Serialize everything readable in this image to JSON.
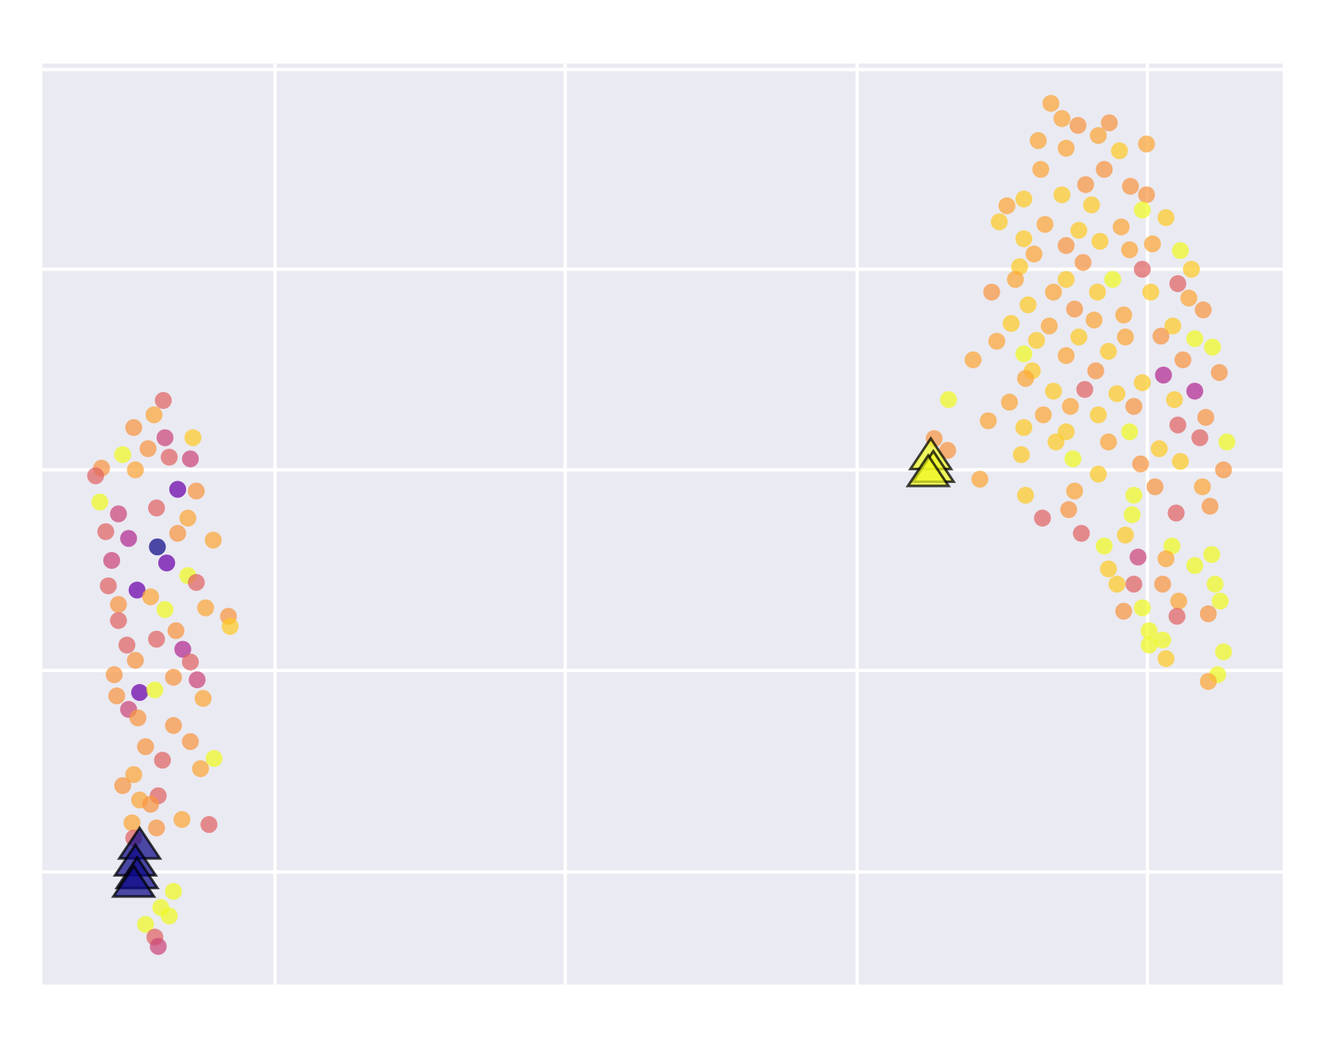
{
  "chart_data": {
    "type": "scatter",
    "grid": true,
    "background": "#eaeaf2",
    "grid_color": "#ffffff",
    "alpha": 0.72,
    "xlim": [
      50,
      1516
    ],
    "ylim": [
      0,
      1088
    ],
    "xticks": [
      325,
      668,
      1013,
      1356
    ],
    "yticks": [
      133,
      371,
      608,
      845,
      1081
    ],
    "series": [
      {
        "marker": "circle",
        "x": [
          193,
          182,
          158,
          195,
          228,
          145,
          175,
          200,
          225,
          120,
          113,
          160,
          210,
          232,
          118,
          140,
          185,
          222,
          125,
          152,
          186,
          210,
          252,
          132,
          197,
          222,
          128,
          162,
          232,
          140,
          178,
          243,
          270,
          140,
          195,
          272,
          208,
          150,
          185,
          216,
          160,
          225,
          135,
          233,
          205,
          165,
          183,
          138,
          240,
          152,
          163,
          205,
          225,
          172,
          192,
          253,
          237,
          158,
          145,
          187,
          165,
          178,
          215,
          156,
          247,
          185,
          158,
          205,
          190,
          200,
          172,
          183,
          187,
          1242,
          1255,
          1274,
          1311,
          1298,
          1227,
          1355,
          1323,
          1260,
          1230,
          1305,
          1283,
          1336,
          1210,
          1255,
          1355,
          1190,
          1290,
          1350,
          1378,
          1181,
          1235,
          1275,
          1325,
          1210,
          1260,
          1300,
          1362,
          1395,
          1222,
          1335,
          1205,
          1280,
          1350,
          1408,
          1200,
          1260,
          1315,
          1392,
          1172,
          1245,
          1297,
          1360,
          1405,
          1215,
          1270,
          1328,
          1422,
          1195,
          1240,
          1293,
          1386,
          1178,
          1225,
          1275,
          1330,
          1372,
          1412,
          1433,
          1210,
          1260,
          1310,
          1150,
          1398,
          1220,
          1295,
          1375,
          1441,
          1212,
          1350,
          1412,
          1245,
          1282,
          1320,
          1121,
          1193,
          1388,
          1265,
          1340,
          1168,
          1233,
          1298,
          1425,
          1392,
          1210,
          1260,
          1335,
          1450,
          1418,
          1104,
          1120,
          1248,
          1310,
          1370,
          1207,
          1268,
          1348,
          1446,
          1395,
          1158,
          1298,
          1365,
          1421,
          1212,
          1270,
          1340,
          1430,
          1232,
          1263,
          1390,
          1338,
          1278,
          1305,
          1330,
          1385,
          1432,
          1345,
          1310,
          1378,
          1412,
          1340,
          1320,
          1374,
          1436,
          1393,
          1442,
          1328,
          1350,
          1391,
          1428,
          1358,
          1374,
          1446,
          1358,
          1378,
          1439,
          1428
        ],
        "y": [
          690,
          673,
          658,
          646,
          646,
          626,
          633,
          623,
          621,
          610,
          601,
          608,
          585,
          583,
          570,
          556,
          563,
          551,
          535,
          527,
          517,
          533,
          525,
          501,
          498,
          483,
          471,
          466,
          475,
          449,
          458,
          445,
          435,
          430,
          443,
          423,
          418,
          401,
          408,
          396,
          383,
          381,
          366,
          360,
          363,
          345,
          348,
          341,
          338,
          325,
          315,
          306,
          287,
          281,
          265,
          267,
          255,
          248,
          235,
          223,
          218,
          213,
          195,
          191,
          189,
          185,
          173,
          110,
          91,
          81,
          71,
          56,
          45,
          1041,
          1023,
          1015,
          1018,
          1003,
          997,
          993,
          985,
          988,
          963,
          963,
          945,
          943,
          928,
          933,
          933,
          920,
          921,
          915,
          906,
          901,
          898,
          891,
          895,
          881,
          873,
          878,
          875,
          867,
          863,
          868,
          848,
          853,
          845,
          845,
          833,
          833,
          833,
          828,
          818,
          818,
          818,
          818,
          811,
          803,
          798,
          791,
          797,
          781,
          778,
          785,
          778,
          760,
          761,
          765,
          765,
          766,
          763,
          753,
          745,
          743,
          748,
          738,
          738,
          725,
          725,
          720,
          723,
          716,
          711,
          701,
          701,
          703,
          698,
          691,
          688,
          691,
          683,
          683,
          666,
          673,
          673,
          670,
          661,
          658,
          653,
          653,
          641,
          646,
          645,
          631,
          641,
          641,
          633,
          626,
          621,
          615,
          608,
          618,
          597,
          603,
          588,
          588,
          578,
          583,
          578,
          565,
          551,
          561,
          557,
          555,
          533,
          518,
          531,
          518,
          508,
          505,
          491,
          503,
          495,
          473,
          473,
          473,
          473,
          453,
          453,
          441,
          445,
          435,
          438,
          418,
          407,
          393,
          401,
          385,
          366,
          358
        ],
        "colors": [
          "#e16462",
          "#fca636",
          "#f89540",
          "#cc4778",
          "#fdca26",
          "#f0f921",
          "#f89540",
          "#e16462",
          "#cc4778",
          "#f89540",
          "#e16462",
          "#fca636",
          "#6a00a8",
          "#f89540",
          "#f0f921",
          "#cc4778",
          "#e16462",
          "#fca636",
          "#e16462",
          "#b12a90",
          "#0d0887",
          "#f89540",
          "#fca636",
          "#cc4778",
          "#6a00a8",
          "#f0f921",
          "#e16462",
          "#6a00a8",
          "#e16462",
          "#f89540",
          "#fca636",
          "#fca636",
          "#f89540",
          "#e16462",
          "#f0f921",
          "#fdca26",
          "#f89540",
          "#e16462",
          "#e16462",
          "#b12a90",
          "#f89540",
          "#e16462",
          "#f89540",
          "#cc4778",
          "#f89540",
          "#6a00a8",
          "#f0f921",
          "#f89540",
          "#fca636",
          "#cc4778",
          "#f89540",
          "#f89540",
          "#f89540",
          "#f89540",
          "#e16462",
          "#f0f921",
          "#fca636",
          "#fca636",
          "#f89540",
          "#e16462",
          "#fca636",
          "#f89540",
          "#fca636",
          "#fca636",
          "#e16462",
          "#f89540",
          "#e16462",
          "#f0f921",
          "#f0f921",
          "#f0f921",
          "#f0f921",
          "#e16462",
          "#cc4778",
          "#fca636",
          "#fca636",
          "#f89540",
          "#f89540",
          "#fca636",
          "#fca636",
          "#fca636",
          "#fdca26",
          "#fca636",
          "#fca636",
          "#f89540",
          "#f89540",
          "#f89540",
          "#fdca26",
          "#fdca26",
          "#f89540",
          "#fca636",
          "#fdca26",
          "#f0f921",
          "#fdca26",
          "#fdca26",
          "#fca636",
          "#fdca26",
          "#fca636",
          "#fdca26",
          "#f89540",
          "#fdca26",
          "#fca636",
          "#f0f921",
          "#fca636",
          "#fca636",
          "#fdca26",
          "#f89540",
          "#e16462",
          "#fdca26",
          "#fca636",
          "#fdca26",
          "#f0f921",
          "#e16462",
          "#f89540",
          "#fca636",
          "#fdca26",
          "#fdca26",
          "#fca636",
          "#fdca26",
          "#f89540",
          "#fca636",
          "#f89540",
          "#fdca26",
          "#fca636",
          "#fca636",
          "#fdca26",
          "#fca636",
          "#fdca26",
          "#fdca26",
          "#fca636",
          "#f89540",
          "#f0f921",
          "#f0f921",
          "#f0f921",
          "#fca636",
          "#fdca26",
          "#fca636",
          "#f89540",
          "#fdca26",
          "#f89540",
          "#b12a90",
          "#f89540",
          "#fca636",
          "#fdca26",
          "#b12a90",
          "#fdca26",
          "#e16462",
          "#fdca26",
          "#f0f921",
          "#fca636",
          "#fdca26",
          "#fca636",
          "#f89540",
          "#fca636",
          "#fca636",
          "#fdca26",
          "#f89540",
          "#e16462",
          "#fdca26",
          "#fdca26",
          "#f0f921",
          "#f0f921",
          "#e16462",
          "#f89540",
          "#f89540",
          "#fdca26",
          "#fca636",
          "#fdca26",
          "#fdca26",
          "#f0f921",
          "#f89540",
          "#f89540",
          "#fdca26",
          "#fca636",
          "#fdca26",
          "#f89540",
          "#fca636",
          "#fdca26",
          "#fca636",
          "#f0f921",
          "#f89540",
          "#e16462",
          "#f89540",
          "#e16462",
          "#f0f921",
          "#e16462",
          "#f0f921",
          "#fdca26",
          "#f0f921",
          "#f0f921",
          "#cc4778",
          "#fdca26",
          "#fca636",
          "#f0f921",
          "#e16462",
          "#fdca26",
          "#f89540",
          "#f0f921",
          "#fca636",
          "#f0f921",
          "#f89540",
          "#f0f921",
          "#e16462",
          "#f89540",
          "#f0f921",
          "#f0f921",
          "#f0f921",
          "#f0f921",
          "#fdca26",
          "#f0f921",
          "#fca636"
        ]
      },
      {
        "marker": "triangle",
        "x": [
          165,
          160,
          162,
          158,
          1100,
          1103,
          1097
        ],
        "y": [
          163,
          143,
          128,
          118,
          623,
          608,
          603
        ],
        "colors": [
          "#0d0887",
          "#0d0887",
          "#0d0887",
          "#0d0887",
          "#f0f921",
          "#f0f921",
          "#f0f921"
        ]
      }
    ]
  }
}
